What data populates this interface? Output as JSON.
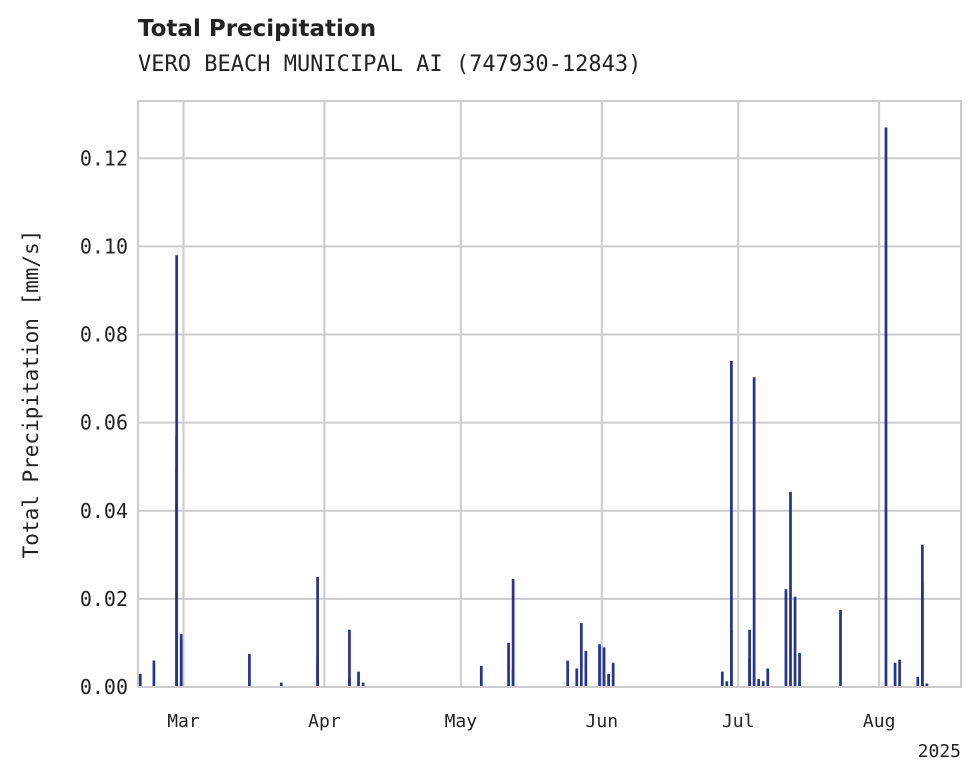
{
  "chart_data": {
    "type": "bar",
    "title": "Total Precipitation",
    "subtitle": "VERO BEACH MUNICIPAL AI (747930-12843)",
    "ylabel": "Total Precipitation [mm/s]",
    "xlabel": "",
    "year_label": "2025",
    "xlim": [
      "2025-02-19",
      "2025-08-19"
    ],
    "ylim": [
      0,
      0.133
    ],
    "grid": true,
    "legend": "none",
    "bar_color": "#27348b",
    "x_ticks": [
      {
        "date": "2025-03-01",
        "label": "Mar"
      },
      {
        "date": "2025-04-01",
        "label": "Apr"
      },
      {
        "date": "2025-05-01",
        "label": "May"
      },
      {
        "date": "2025-06-01",
        "label": "Jun"
      },
      {
        "date": "2025-07-01",
        "label": "Jul"
      },
      {
        "date": "2025-08-01",
        "label": "Aug"
      }
    ],
    "y_ticks": [
      {
        "value": 0.0,
        "label": "0.00"
      },
      {
        "value": 0.02,
        "label": "0.02"
      },
      {
        "value": 0.04,
        "label": "0.04"
      },
      {
        "value": 0.06,
        "label": "0.06"
      },
      {
        "value": 0.08,
        "label": "0.08"
      },
      {
        "value": 0.1,
        "label": "0.10"
      },
      {
        "value": 0.12,
        "label": "0.12"
      }
    ],
    "x": [
      "2025-02-19",
      "2025-02-22",
      "2025-02-27",
      "2025-02-27",
      "2025-02-27",
      "2025-02-28",
      "2025-02-28",
      "2025-03-15",
      "2025-03-22",
      "2025-03-30",
      "2025-03-30",
      "2025-04-06",
      "2025-04-06",
      "2025-04-08",
      "2025-04-09",
      "2025-05-05",
      "2025-05-11",
      "2025-05-12",
      "2025-05-12",
      "2025-05-24",
      "2025-05-26",
      "2025-05-27",
      "2025-05-28",
      "2025-05-31",
      "2025-06-01",
      "2025-06-02",
      "2025-06-03",
      "2025-06-27",
      "2025-06-28",
      "2025-06-29",
      "2025-06-29",
      "2025-07-03",
      "2025-07-03",
      "2025-07-04",
      "2025-07-05",
      "2025-07-06",
      "2025-07-07",
      "2025-07-11",
      "2025-07-12",
      "2025-07-13",
      "2025-07-14",
      "2025-07-14",
      "2025-07-23",
      "2025-08-02",
      "2025-08-04",
      "2025-08-05",
      "2025-08-09",
      "2025-08-10",
      "2025-08-10",
      "2025-08-11"
    ],
    "values": [
      0.003,
      0.006,
      0.05,
      0.098,
      0.057,
      0.012,
      0.001,
      0.0075,
      0.001,
      0.007,
      0.025,
      0.002,
      0.013,
      0.0035,
      0.001,
      0.0048,
      0.01,
      0.0245,
      0.004,
      0.006,
      0.0042,
      0.0145,
      0.0082,
      0.0097,
      0.009,
      0.003,
      0.0055,
      0.0035,
      0.0013,
      0.074,
      0.0128,
      0.013,
      0.0065,
      0.0703,
      0.0018,
      0.0013,
      0.0042,
      0.0222,
      0.0443,
      0.0205,
      0.0077,
      0.001,
      0.0175,
      0.127,
      0.0055,
      0.0062,
      0.0023,
      0.0235,
      0.0323,
      0.0008
    ]
  }
}
